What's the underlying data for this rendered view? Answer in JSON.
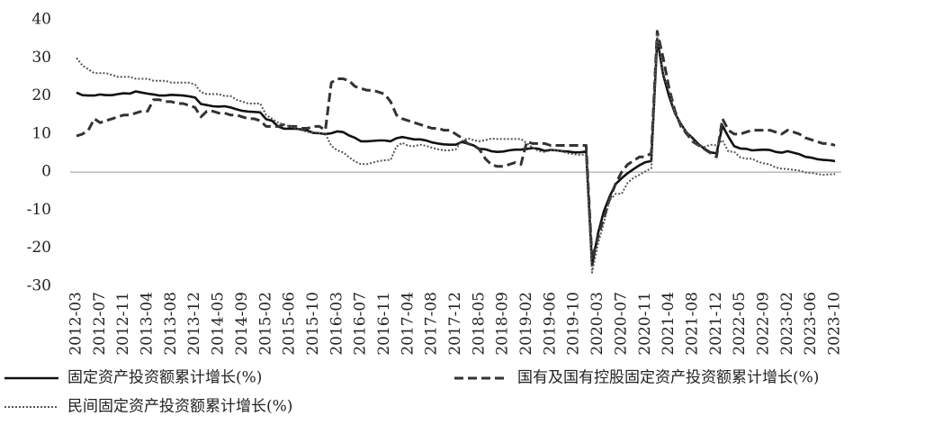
{
  "chart_data": {
    "type": "line",
    "categories": [
      "2012-03",
      null,
      null,
      null,
      "2012-07",
      null,
      null,
      null,
      "2012-11",
      null,
      null,
      null,
      "2013-04",
      null,
      null,
      null,
      "2013-08",
      null,
      null,
      null,
      "2013-12",
      null,
      null,
      null,
      "2014-05",
      null,
      null,
      null,
      "2014-09",
      null,
      null,
      null,
      "2015-02",
      null,
      null,
      null,
      "2015-06",
      null,
      null,
      null,
      "2015-10",
      null,
      null,
      null,
      "2016-03",
      null,
      null,
      null,
      "2016-07",
      null,
      null,
      null,
      "2016-11",
      null,
      null,
      null,
      "2017-04",
      null,
      null,
      null,
      "2017-08",
      null,
      null,
      null,
      "2017-12",
      null,
      null,
      null,
      "2018-05",
      null,
      null,
      null,
      "2018-09",
      null,
      null,
      null,
      "2019-02",
      null,
      null,
      null,
      "2019-06",
      null,
      null,
      null,
      "2019-10",
      null,
      null,
      null,
      "2020-03",
      null,
      null,
      null,
      "2020-07",
      null,
      null,
      null,
      "2020-11",
      null,
      null,
      null,
      "2021-04",
      null,
      null,
      null,
      "2021-08",
      null,
      null,
      null,
      "2021-12",
      null,
      null,
      null,
      "2022-05",
      null,
      null,
      null,
      "2022-09",
      null,
      null,
      null,
      "2023-02",
      null,
      null,
      null,
      "2023-06",
      null,
      null,
      null,
      "2023-10"
    ],
    "series": [
      {
        "name": "固定资产投资额累计增长(%)",
        "color": "#111111",
        "dash": "solid",
        "values": [
          20.9,
          20.2,
          20.1,
          20.1,
          20.4,
          20.2,
          20.2,
          20.5,
          20.7,
          20.6,
          21.2,
          20.9,
          20.6,
          20.4,
          20.1,
          20.1,
          20.3,
          20.2,
          20.1,
          19.9,
          19.6,
          17.9,
          17.6,
          17.3,
          17.2,
          17.3,
          17.0,
          16.5,
          16.1,
          15.9,
          15.8,
          15.7,
          13.9,
          13.5,
          12.0,
          11.4,
          11.4,
          11.4,
          11.2,
          10.9,
          10.3,
          10.2,
          10.0,
          10.2,
          10.7,
          10.5,
          9.6,
          9.0,
          8.1,
          8.1,
          8.2,
          8.3,
          8.3,
          8.1,
          8.9,
          9.2,
          8.9,
          8.6,
          8.6,
          8.3,
          7.8,
          7.5,
          7.3,
          7.2,
          7.2,
          7.9,
          7.5,
          7.0,
          6.1,
          6.0,
          5.5,
          5.3,
          5.4,
          5.7,
          5.9,
          5.9,
          6.1,
          6.3,
          6.1,
          5.6,
          5.8,
          5.7,
          5.5,
          5.4,
          5.2,
          5.2,
          5.4,
          -24.5,
          -16.1,
          -10.3,
          -6.3,
          -3.1,
          -1.6,
          -0.3,
          0.8,
          1.8,
          2.6,
          2.9,
          35.0,
          25.6,
          19.9,
          15.4,
          12.6,
          10.3,
          8.9,
          7.3,
          6.1,
          5.2,
          4.9,
          12.2,
          9.3,
          6.8,
          6.2,
          6.1,
          5.7,
          5.8,
          5.9,
          5.8,
          5.3,
          5.1,
          5.5,
          5.1,
          4.7,
          4.0,
          3.8,
          3.4,
          3.2,
          3.1,
          2.9
        ]
      },
      {
        "name": "国有及国有控股固定资产投资额累计增长(%)",
        "color": "#333333",
        "dash": "dashed",
        "values": [
          9.5,
          10,
          11,
          14,
          13,
          13.5,
          14,
          14.5,
          15,
          15,
          15.5,
          16,
          16,
          19,
          19,
          18.5,
          18.5,
          18,
          18,
          17.5,
          17,
          14.5,
          16,
          16,
          15.5,
          15.5,
          15,
          15,
          14.5,
          14,
          14,
          13.5,
          12,
          12,
          12,
          12.5,
          12,
          12,
          11.5,
          11.5,
          12,
          12,
          11,
          23.5,
          24.5,
          24.5,
          24,
          22.5,
          22,
          21.5,
          21.5,
          21,
          20.5,
          18.5,
          15,
          14,
          13.5,
          13,
          12.5,
          12,
          11.5,
          11.5,
          11,
          11,
          10,
          9,
          7.5,
          7,
          6,
          3.5,
          2,
          1.5,
          1.5,
          2,
          2.5,
          2,
          8,
          7.5,
          7.5,
          7.5,
          7,
          7,
          7,
          7,
          7,
          7,
          7,
          -23,
          -17,
          -12,
          -7,
          -3,
          0,
          2,
          3,
          4,
          4,
          5,
          37,
          30,
          22,
          16,
          12,
          10,
          8,
          7,
          6,
          5,
          4,
          14,
          11,
          10,
          10,
          10.5,
          11,
          11,
          11,
          11,
          10.5,
          10,
          11,
          10.5,
          10,
          9,
          8.5,
          8,
          7.5,
          7.5,
          7
        ]
      },
      {
        "name": "民间固定资产投资额累计增长(%)",
        "color": "#555555",
        "dash": "dotted",
        "values": [
          30,
          28,
          27,
          26,
          26,
          26,
          25.5,
          25,
          25,
          25,
          24.5,
          24.5,
          24.5,
          24,
          24,
          24,
          23.5,
          23.5,
          23.5,
          23.5,
          23,
          21,
          20.5,
          20.5,
          20.5,
          20,
          20,
          19,
          18.5,
          18,
          18,
          18,
          15,
          14,
          13,
          12.5,
          12,
          11.5,
          11,
          10.5,
          10.5,
          10.2,
          10.1,
          6.9,
          5.7,
          5.2,
          3.9,
          2.8,
          2.1,
          2.1,
          2.5,
          2.9,
          3.1,
          3.2,
          6.7,
          7.7,
          6.9,
          6.8,
          7.2,
          6.9,
          6.4,
          6.0,
          5.7,
          5.7,
          6.0,
          8.1,
          8.9,
          8.4,
          8.1,
          8.4,
          8.8,
          8.7,
          8.7,
          8.7,
          8.7,
          8.7,
          7.6,
          6.4,
          5.5,
          5.3,
          5.7,
          5.7,
          5.4,
          4.9,
          4.7,
          4.5,
          4.7,
          -26.4,
          -18.8,
          -13.3,
          -7.3,
          -5.7,
          -5.7,
          -2.8,
          -1.5,
          -0.7,
          0.2,
          1.0,
          36.4,
          26.0,
          21.0,
          15.4,
          12.4,
          10.4,
          8.6,
          7.0,
          6.6,
          7.2,
          7.0,
          8.4,
          5.4,
          5.3,
          3.9,
          3.5,
          3.5,
          2.7,
          2.3,
          2.0,
          1.2,
          0.9,
          0.8,
          0.6,
          0.4,
          -0.1,
          -0.2,
          -0.5,
          -0.7,
          -0.6,
          -0.5
        ]
      }
    ],
    "ylim": [
      -30,
      40
    ],
    "yticks": [
      -30,
      -20,
      -10,
      0,
      10,
      20,
      30,
      40
    ]
  }
}
